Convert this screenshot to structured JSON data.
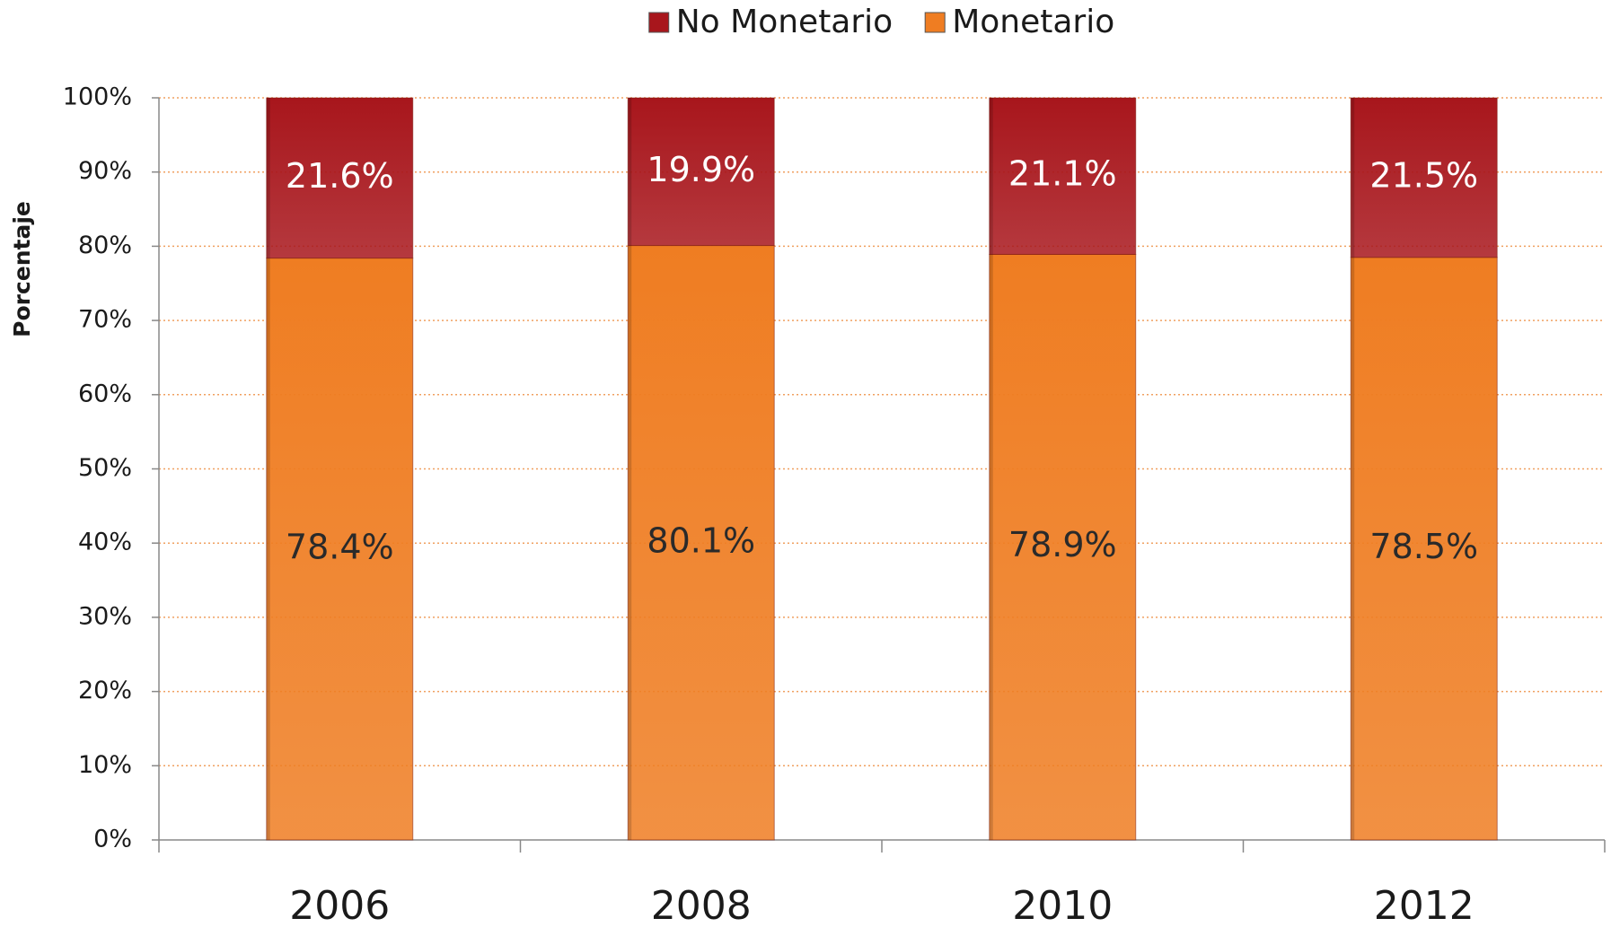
{
  "chart_data": {
    "type": "stacked-bar",
    "y_label": "Porcentaje",
    "categories": [
      "2006",
      "2008",
      "2010",
      "2012"
    ],
    "series": [
      {
        "name": "No Monetario",
        "color": "#a8161c",
        "values": [
          21.6,
          19.9,
          21.1,
          21.5
        ],
        "value_labels": [
          "21.6%",
          "19.9%",
          "21.1%",
          "21.5%"
        ]
      },
      {
        "name": "Monetario",
        "color": "#ef7d22",
        "values": [
          78.4,
          80.1,
          78.9,
          78.5
        ],
        "value_labels": [
          "78.4%",
          "80.1%",
          "78.9%",
          "78.5%"
        ]
      }
    ],
    "ylim": [
      0,
      100
    ],
    "yticks": [
      {
        "value": 0,
        "label": "0%"
      },
      {
        "value": 10,
        "label": "10%"
      },
      {
        "value": 20,
        "label": "20%"
      },
      {
        "value": 30,
        "label": "30%"
      },
      {
        "value": 40,
        "label": "40%"
      },
      {
        "value": 50,
        "label": "50%"
      },
      {
        "value": 60,
        "label": "60%"
      },
      {
        "value": 70,
        "label": "70%"
      },
      {
        "value": 80,
        "label": "80%"
      },
      {
        "value": 90,
        "label": "90%"
      },
      {
        "value": 100,
        "label": "100%"
      }
    ],
    "grid": true,
    "grid_color": "#f0a060",
    "legend": "top"
  }
}
